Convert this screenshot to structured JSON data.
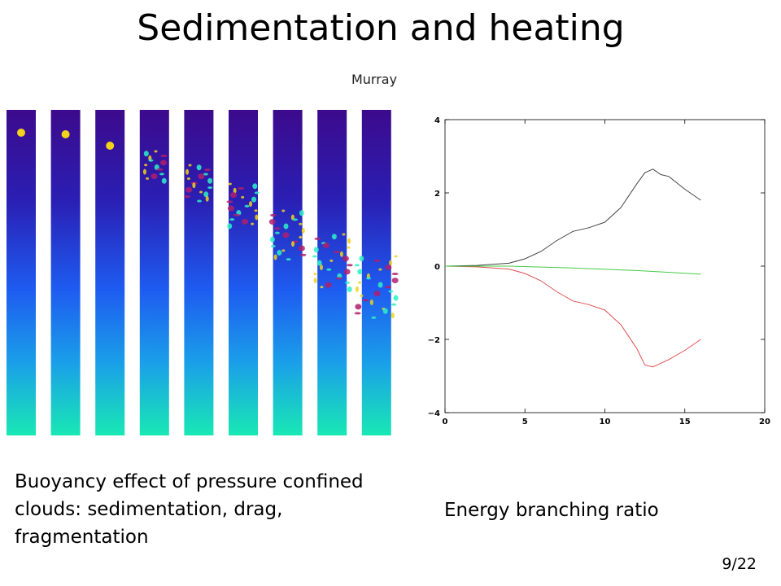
{
  "slide": {
    "title": "Sedimentation and heating",
    "attribution": "Murray",
    "caption_left": "Buoyancy effect of pressure confined clouds: sedimentation, drag, fragmentation",
    "caption_right": "Energy branching ratio",
    "page_number": "9/22"
  },
  "simulation_strips": {
    "count": 9,
    "colormap": [
      "#3c0a8c",
      "#2a1fb4",
      "#1e5bf0",
      "#1aa0e8",
      "#19e8b4"
    ],
    "cloud_color": "#f2d21a"
  },
  "chart_data": {
    "type": "line",
    "title": "",
    "xlabel": "",
    "ylabel": "",
    "xlim": [
      0,
      20
    ],
    "ylim": [
      -4,
      4
    ],
    "xticks": [
      "0",
      "5",
      "10",
      "15",
      "20"
    ],
    "yticks": [
      "4",
      "2",
      "0",
      "−2",
      "−4"
    ],
    "grid": false,
    "series": [
      {
        "color": "#444444",
        "x": [
          0,
          2,
          4,
          5,
          6,
          7,
          8,
          9,
          10,
          11,
          12,
          12.5,
          13,
          13.5,
          14,
          15,
          16
        ],
        "y": [
          0,
          0.02,
          0.08,
          0.2,
          0.4,
          0.7,
          0.95,
          1.05,
          1.2,
          1.6,
          2.25,
          2.55,
          2.65,
          2.5,
          2.45,
          2.1,
          1.8
        ]
      },
      {
        "color": "#e05050",
        "x": [
          0,
          2,
          4,
          5,
          6,
          7,
          8,
          9,
          10,
          11,
          12,
          12.5,
          13,
          13.5,
          14,
          15,
          16
        ],
        "y": [
          0,
          -0.02,
          -0.08,
          -0.2,
          -0.4,
          -0.7,
          -0.95,
          -1.05,
          -1.2,
          -1.6,
          -2.25,
          -2.7,
          -2.75,
          -2.65,
          -2.55,
          -2.3,
          -2.0
        ]
      },
      {
        "color": "#44cc44",
        "x": [
          0,
          4,
          8,
          12,
          16
        ],
        "y": [
          0,
          0,
          -0.05,
          -0.12,
          -0.22
        ]
      }
    ]
  }
}
